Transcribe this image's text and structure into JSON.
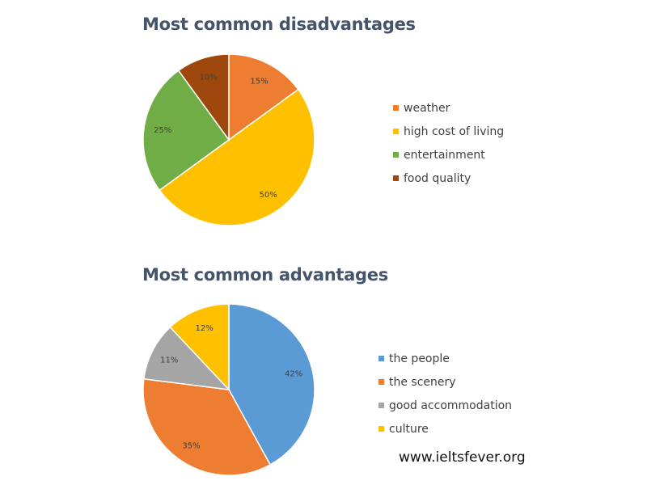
{
  "chart_data": [
    {
      "type": "pie",
      "title": "Most common disadvantages",
      "categories": [
        "weather",
        "high cost of living",
        "entertainment",
        "food quality"
      ],
      "values": [
        15,
        50,
        25,
        10
      ],
      "labels": [
        "15%",
        "50%",
        "25%",
        "10%"
      ],
      "colors": [
        "#ed7d31",
        "#ffc000",
        "#70ad47",
        "#9e480e"
      ],
      "legend": "right"
    },
    {
      "type": "pie",
      "title": "Most common advantages",
      "categories": [
        "the people",
        "the scenery",
        "good accommodation",
        "culture"
      ],
      "values": [
        42,
        35,
        11,
        12
      ],
      "labels": [
        "42%",
        "35%",
        "11%",
        "12%"
      ],
      "colors": [
        "#5b9bd5",
        "#ed7d31",
        "#a5a5a5",
        "#ffc000"
      ],
      "legend": "right"
    }
  ],
  "watermark": "www.ieltsfever.org"
}
